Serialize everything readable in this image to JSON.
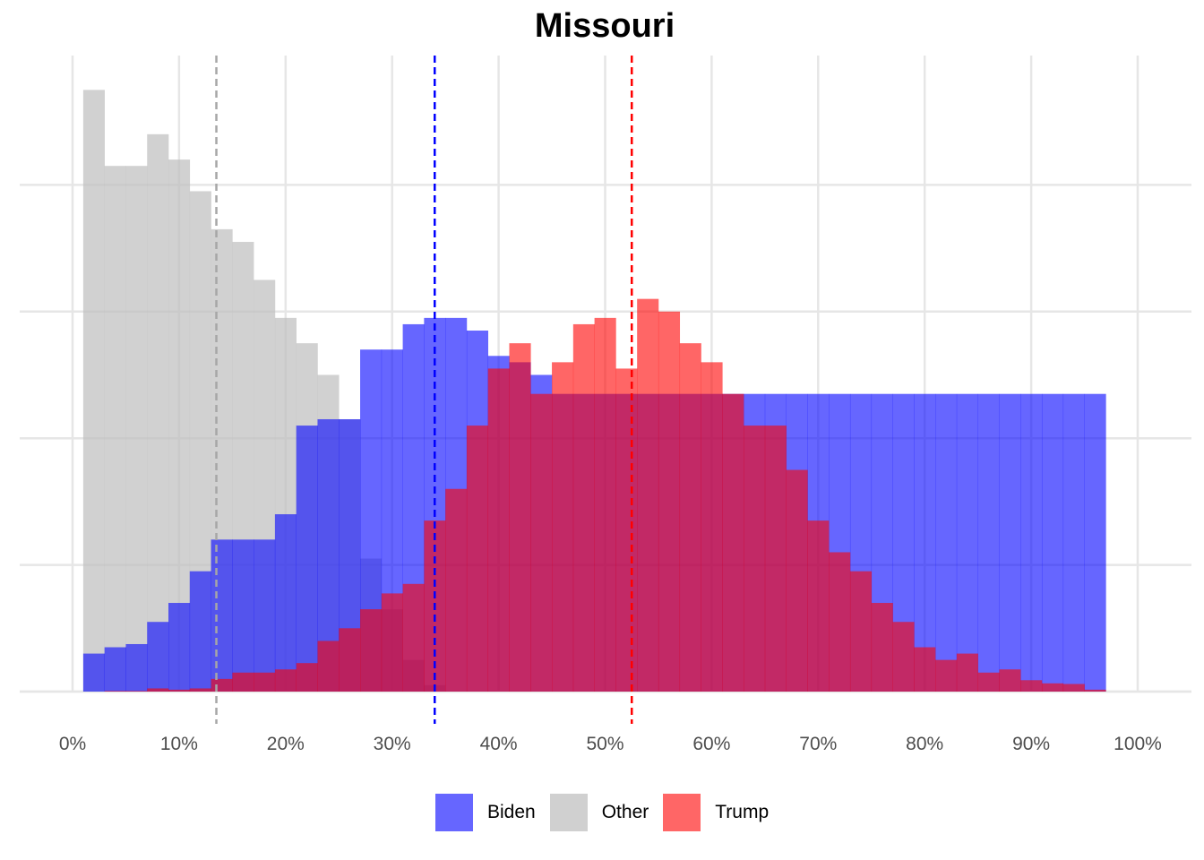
{
  "chart_data": {
    "type": "histogram",
    "title": "Missouri",
    "xlabel": "",
    "ylabel": "",
    "x_tick_labels": [
      "0%",
      "10%",
      "20%",
      "30%",
      "40%",
      "50%",
      "60%",
      "70%",
      "80%",
      "90%",
      "100%"
    ],
    "x_ticks": [
      0,
      10,
      20,
      30,
      40,
      50,
      60,
      70,
      80,
      90,
      100
    ],
    "xlim": [
      -5,
      105
    ],
    "ylim": [
      0,
      105
    ],
    "grid": true,
    "legend_position": "bottom",
    "bin_width": 2,
    "bin_starts": [
      1,
      3,
      5,
      7,
      9,
      11,
      13,
      15,
      17,
      19,
      21,
      23,
      25,
      27,
      29,
      31,
      33,
      35,
      37,
      39,
      41,
      43,
      45,
      47,
      49,
      51,
      53,
      55,
      57,
      59,
      61,
      63,
      65,
      67,
      69,
      71,
      73,
      75,
      77,
      79,
      81,
      83,
      85,
      87,
      89,
      91,
      93,
      95
    ],
    "series": [
      {
        "name": "Other",
        "color": "#bfbfbf",
        "mean_line": 13.5,
        "values": [
          95,
          83,
          83,
          88,
          84,
          79,
          73,
          71,
          65,
          59,
          55,
          50,
          43,
          21,
          13,
          5,
          1,
          0,
          0,
          0,
          0,
          0,
          0,
          0,
          0,
          0,
          0,
          0,
          0,
          0,
          0,
          0,
          0,
          0,
          0,
          0,
          0,
          0,
          0,
          0,
          0,
          0,
          0,
          0,
          0,
          0,
          0,
          0
        ]
      },
      {
        "name": "Biden",
        "color": "#0000ff",
        "mean_line": 34,
        "values": [
          6,
          7,
          7.5,
          11,
          14,
          19,
          24,
          24,
          24,
          28,
          42,
          43,
          43,
          54,
          54,
          58,
          59,
          59,
          57,
          53,
          52,
          50,
          47,
          47,
          47,
          47,
          47,
          47,
          47,
          47,
          47,
          47,
          47,
          47,
          47,
          47,
          47,
          47,
          47,
          47,
          47,
          47,
          47,
          47,
          47,
          47,
          47,
          47
        ]
      },
      {
        "name": "Trump",
        "color": "#ff0000",
        "mean_line": 52.5,
        "values": [
          0,
          0.1,
          0.1,
          0.5,
          0.3,
          0.5,
          2,
          3,
          3,
          3.5,
          4.5,
          8,
          10,
          13,
          15.5,
          17,
          27,
          32,
          42,
          51,
          55,
          47,
          52,
          58,
          59,
          51,
          62,
          60,
          55,
          52,
          47,
          42,
          42,
          35,
          27,
          22,
          19,
          14,
          11,
          7,
          5,
          6,
          3,
          3.5,
          1.8,
          1.3,
          1.2,
          0.3
        ]
      }
    ],
    "overlap_colors": {
      "biden_trump": "#bd2867",
      "other_biden": "#9494d4",
      "other_trump": "#cf3f55"
    }
  },
  "legend": {
    "items": [
      {
        "label": "Biden",
        "color": "#6666ff"
      },
      {
        "label": "Other",
        "color": "#d0d0d0"
      },
      {
        "label": "Trump",
        "color": "#ff6666"
      }
    ]
  }
}
